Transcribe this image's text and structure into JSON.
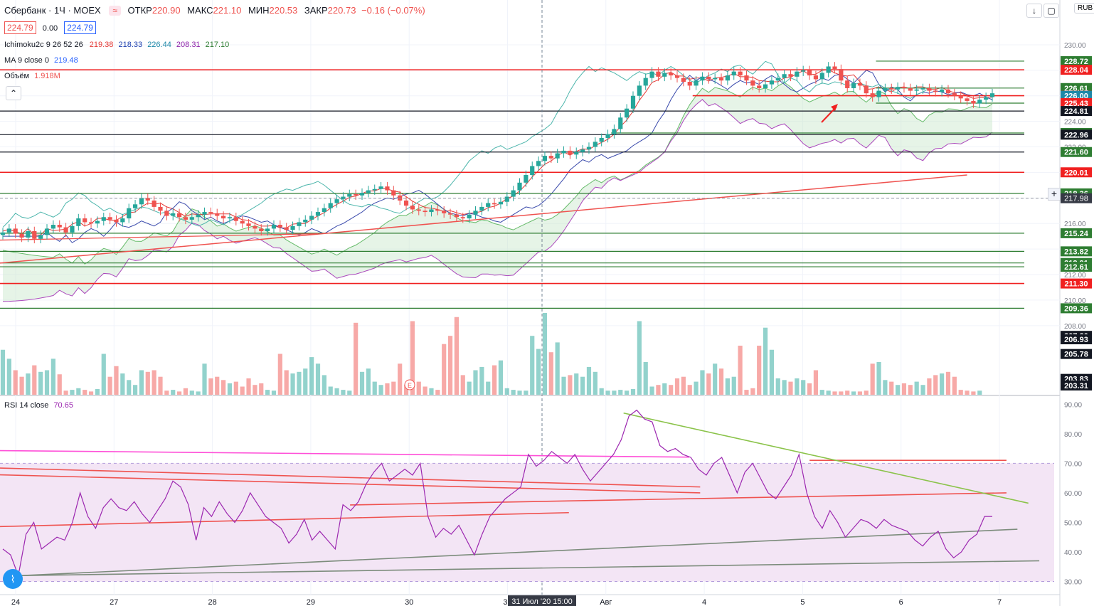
{
  "header": {
    "symbol": "Сбербанк · 1Ч · MOEX",
    "wave_icon": "≈",
    "open_label": "ОТКР",
    "open": "220.90",
    "high_label": "МАКС",
    "high": "221.10",
    "low_label": "МИН",
    "low": "220.53",
    "close_label": "ЗАКР",
    "close": "220.73",
    "change": "−0.16 (−0.07%)",
    "bid": "224.79",
    "spread": "0.00",
    "ask": "224.79"
  },
  "indicators": {
    "ichimoku_label": "Ichimoku2c 9 26 52 26",
    "ichimoku_values": [
      "219.38",
      "218.33",
      "226.44",
      "208.31",
      "217.10"
    ],
    "ichimoku_colors": [
      "#e53935",
      "#1e40af",
      "#1e88a8",
      "#8e24aa",
      "#2e7d32"
    ],
    "ma_label": "MA 9 close 0",
    "ma_value": "219.48",
    "volume_label": "Объём",
    "volume_value": "1.918M",
    "rsi_label": "RSI 14 close",
    "rsi_value": "70.65"
  },
  "currency": "RUB",
  "crosshair": {
    "time_label": "31 Июл '20",
    "time_value": "15:00",
    "price_label": "217.98"
  },
  "colors": {
    "up": "#26a69a",
    "down": "#ef5350",
    "red_level": "#f02020",
    "green_level": "#2e7d32",
    "cloud": "#c8e6c9",
    "rsi_line": "#9c27b0",
    "rsi_band": "#f3e5f5"
  },
  "chart_data": {
    "type": "candlestick",
    "price_range": [
      207.6,
      231.0
    ],
    "price_ticks": [
      230,
      228,
      226,
      224,
      222,
      220,
      218,
      216,
      214,
      212,
      210,
      208
    ],
    "x_labels": [
      "24",
      "27",
      "28",
      "29",
      "30",
      "31",
      "Авг",
      "4",
      "5",
      "6",
      "7"
    ],
    "price_labels": [
      {
        "v": 228.72,
        "c": "#2e7d32"
      },
      {
        "v": 228.04,
        "c": "#f02020"
      },
      {
        "v": 226.61,
        "c": "#2e7d32"
      },
      {
        "v": 226.01,
        "c": "#f02020"
      },
      {
        "v": 226.0,
        "c": "#1e88a8"
      },
      {
        "v": 225.43,
        "c": "#f02020"
      },
      {
        "v": 224.81,
        "c": "#131722"
      },
      {
        "v": 223.09,
        "c": "#2e7d32"
      },
      {
        "v": 222.96,
        "c": "#131722"
      },
      {
        "v": 221.6,
        "c": "#2e7d32"
      },
      {
        "v": 220.01,
        "c": "#f02020"
      },
      {
        "v": 218.36,
        "c": "#2e7d32"
      },
      {
        "v": 215.24,
        "c": "#2e7d32"
      },
      {
        "v": 213.82,
        "c": "#2e7d32"
      },
      {
        "v": 212.91,
        "c": "#2e7d32"
      },
      {
        "v": 212.61,
        "c": "#2e7d32"
      },
      {
        "v": 211.3,
        "c": "#f02020"
      },
      {
        "v": 209.36,
        "c": "#2e7d32"
      },
      {
        "v": 207.2,
        "c": "#131722"
      },
      {
        "v": 206.93,
        "c": "#131722"
      },
      {
        "v": 205.78,
        "c": "#131722"
      },
      {
        "v": 203.83,
        "c": "#131722"
      },
      {
        "v": 203.31,
        "c": "#131722"
      }
    ],
    "horizontal_levels": [
      {
        "v": 228.72,
        "c": "#2e7d32",
        "from": 0.86
      },
      {
        "v": 228.04,
        "c": "#f02020",
        "from": 0
      },
      {
        "v": 226.61,
        "c": "#2e7d32",
        "from": 0.86
      },
      {
        "v": 226.01,
        "c": "#f02020",
        "from": 0.68
      },
      {
        "v": 225.43,
        "c": "#2e7d32",
        "from": 0.86
      },
      {
        "v": 224.81,
        "c": "#131722",
        "from": 0
      },
      {
        "v": 223.09,
        "c": "#2e7d32",
        "from": 0.6
      },
      {
        "v": 222.96,
        "c": "#131722",
        "from": 0
      },
      {
        "v": 221.6,
        "c": "#131722",
        "from": 0
      },
      {
        "v": 220.01,
        "c": "#f02020",
        "from": 0
      },
      {
        "v": 218.36,
        "c": "#2e7d32",
        "from": 0
      },
      {
        "v": 215.24,
        "c": "#2e7d32",
        "from": 0
      },
      {
        "v": 213.82,
        "c": "#2e7d32",
        "from": 0
      },
      {
        "v": 212.91,
        "c": "#2e7d32",
        "from": 0
      },
      {
        "v": 212.61,
        "c": "#2e7d32",
        "from": 0
      },
      {
        "v": 211.3,
        "c": "#f02020",
        "from": 0
      },
      {
        "v": 209.36,
        "c": "#2e7d32",
        "from": 0
      },
      {
        "v": 207.2,
        "c": "#131722",
        "from": 0
      },
      {
        "v": 206.93,
        "c": "#131722",
        "from": 0
      },
      {
        "v": 205.78,
        "c": "#131722",
        "from": 0
      },
      {
        "v": 203.83,
        "c": "#131722",
        "from": 0
      },
      {
        "v": 203.31,
        "c": "#131722",
        "from": 0
      }
    ],
    "closes": [
      215.3,
      215.6,
      215.2,
      214.9,
      215.4,
      214.8,
      215.1,
      215.6,
      215.9,
      215.7,
      215.3,
      215.8,
      216.4,
      216.1,
      216.0,
      216.2,
      216.5,
      216.3,
      216.1,
      216.4,
      217.2,
      217.5,
      218.0,
      217.8,
      217.3,
      217.0,
      216.6,
      216.8,
      216.5,
      216.3,
      216.5,
      216.7,
      216.9,
      216.8,
      216.6,
      216.4,
      216.5,
      216.2,
      216.0,
      215.8,
      215.6,
      215.4,
      215.6,
      215.9,
      215.7,
      215.5,
      215.8,
      216.1,
      216.3,
      216.6,
      216.9,
      217.2,
      217.6,
      217.9,
      218.1,
      218.3,
      218.2,
      218.4,
      218.6,
      218.7,
      218.9,
      218.6,
      218.2,
      217.8,
      217.4,
      217.1,
      217.0,
      216.9,
      217.1,
      217.0,
      216.8,
      216.7,
      216.5,
      216.4,
      216.7,
      217.0,
      217.3,
      217.6,
      217.5,
      217.7,
      218.1,
      218.6,
      219.2,
      219.8,
      220.5,
      220.9,
      221.3,
      221.1,
      221.5,
      221.7,
      221.4,
      221.6,
      221.8,
      222.0,
      222.4,
      222.7,
      223.0,
      223.4,
      224.3,
      225.0,
      226.0,
      226.8,
      227.4,
      227.9,
      227.5,
      227.8,
      227.6,
      227.4,
      227.1,
      226.8,
      227.2,
      227.5,
      227.3,
      227.4,
      227.2,
      227.6,
      227.9,
      227.6,
      227.2,
      226.8,
      226.6,
      226.9,
      227.2,
      227.4,
      227.7,
      227.5,
      227.9,
      228.0,
      227.6,
      227.3,
      227.8,
      228.3,
      228.1,
      227.2,
      226.6,
      227.0,
      226.8,
      226.2,
      225.9,
      226.4,
      226.6,
      226.5,
      226.7,
      226.6,
      226.4,
      226.5,
      226.6,
      226.4,
      226.3,
      226.5,
      226.2,
      226.0,
      225.8,
      225.6,
      225.4,
      225.7,
      225.9,
      226.2
    ],
    "volumes": [
      0.55,
      0.44,
      0.3,
      0.22,
      0.26,
      0.36,
      0.28,
      0.3,
      0.44,
      0.25,
      0.05,
      0.06,
      0.08,
      0.06,
      0.04,
      0.07,
      0.5,
      0.22,
      0.35,
      0.26,
      0.18,
      0.12,
      0.3,
      0.28,
      0.3,
      0.22,
      0.05,
      0.06,
      0.04,
      0.08,
      0.05,
      0.04,
      0.38,
      0.2,
      0.22,
      0.18,
      0.14,
      0.16,
      0.1,
      0.2,
      0.12,
      0.14,
      0.06,
      0.05,
      0.5,
      0.3,
      0.26,
      0.28,
      0.32,
      0.46,
      0.38,
      0.24,
      0.1,
      0.08,
      0.06,
      0.05,
      0.88,
      0.28,
      0.32,
      0.16,
      0.12,
      0.14,
      0.16,
      0.38,
      0.12,
      0.9,
      0.16,
      0.1,
      0.08,
      0.06,
      0.62,
      0.72,
      0.95,
      0.24,
      0.16,
      0.3,
      0.34,
      0.16,
      0.36,
      0.42,
      0.08,
      0.06,
      0.05,
      0.05,
      0.72,
      0.56,
      1.0,
      0.52,
      0.64,
      0.22,
      0.24,
      0.26,
      0.22,
      0.34,
      0.28,
      0.08,
      0.05,
      0.05,
      0.06,
      0.05,
      0.07,
      0.9,
      0.4,
      0.1,
      0.12,
      0.14,
      0.12,
      0.2,
      0.22,
      0.12,
      0.16,
      0.3,
      0.26,
      0.38,
      0.32,
      0.2,
      0.22,
      0.6,
      0.06,
      0.08,
      0.6,
      0.82,
      0.55,
      0.2,
      0.18,
      0.16,
      0.2,
      0.18,
      0.14,
      0.3,
      0.06,
      0.05,
      0.04,
      0.04,
      0.05,
      0.04,
      0.04,
      0.05,
      0.38,
      0.4,
      0.18,
      0.16,
      0.12,
      0.14,
      0.12,
      0.16,
      0.12,
      0.2,
      0.24,
      0.26,
      0.28,
      0.22,
      0.06,
      0.05,
      0.04,
      0.05
    ],
    "rsi": {
      "range": [
        27,
        92
      ],
      "ticks": [
        90,
        80,
        70,
        60,
        50,
        40,
        30
      ],
      "band": [
        30,
        70
      ],
      "values": [
        41,
        39,
        32,
        46,
        50,
        41,
        43,
        45,
        44,
        50,
        60,
        52,
        48,
        55,
        58,
        55,
        54,
        57,
        53,
        50,
        54,
        58,
        64,
        62,
        56,
        44,
        55,
        52,
        57,
        53,
        50,
        54,
        60,
        56,
        52,
        50,
        48,
        43,
        46,
        51,
        44,
        47,
        44,
        41,
        56,
        54,
        57,
        63,
        67,
        70,
        64,
        66,
        68,
        66,
        70,
        52,
        45,
        48,
        46,
        49,
        44,
        39,
        46,
        52,
        55,
        58,
        60,
        62,
        73,
        69,
        71,
        74,
        72,
        70,
        73,
        68,
        64,
        67,
        70,
        73,
        78,
        86,
        88,
        85,
        84,
        76,
        74,
        75,
        73,
        72,
        68,
        66,
        70,
        72,
        66,
        60,
        67,
        70,
        65,
        60,
        58,
        62,
        66,
        73,
        60,
        52,
        48,
        54,
        50,
        45,
        48,
        51,
        50,
        48,
        51,
        49,
        48,
        47,
        44,
        42,
        45,
        47,
        41,
        38,
        40,
        44,
        46,
        52,
        52
      ],
      "horizontal_lines": [
        {
          "v": 71,
          "c": "#ef5350"
        }
      ],
      "trend_lines": [
        {
          "c": "#ff4fd8",
          "p": [
            [
              0,
              74.3
            ],
            [
              0.63,
              72.1
            ]
          ]
        },
        {
          "c": "#ef5350",
          "p": [
            [
              0,
              68.4
            ],
            [
              0.64,
              62.0
            ]
          ]
        },
        {
          "c": "#ef5350",
          "p": [
            [
              0,
              66.1
            ],
            [
              0.64,
              60.0
            ]
          ]
        },
        {
          "c": "#ef5350",
          "p": [
            [
              0,
              48.6
            ],
            [
              0.52,
              53.3
            ]
          ]
        },
        {
          "c": "#ef5350",
          "p": [
            [
              0.32,
              55.9
            ],
            [
              0.92,
              60.0
            ]
          ]
        },
        {
          "c": "#ef5350",
          "p": [
            [
              0.74,
              71.0
            ],
            [
              0.92,
              71.0
            ]
          ]
        },
        {
          "c": "#8bc34a",
          "p": [
            [
              0.57,
              87.0
            ],
            [
              0.94,
              56.5
            ]
          ]
        },
        {
          "c": "#7c8c7c",
          "p": [
            [
              0.02,
              32.0
            ],
            [
              0.93,
              47.7
            ]
          ]
        },
        {
          "c": "#7c8c7c",
          "p": [
            [
              0.02,
              32.0
            ],
            [
              0.95,
              37.0
            ]
          ]
        }
      ]
    }
  }
}
